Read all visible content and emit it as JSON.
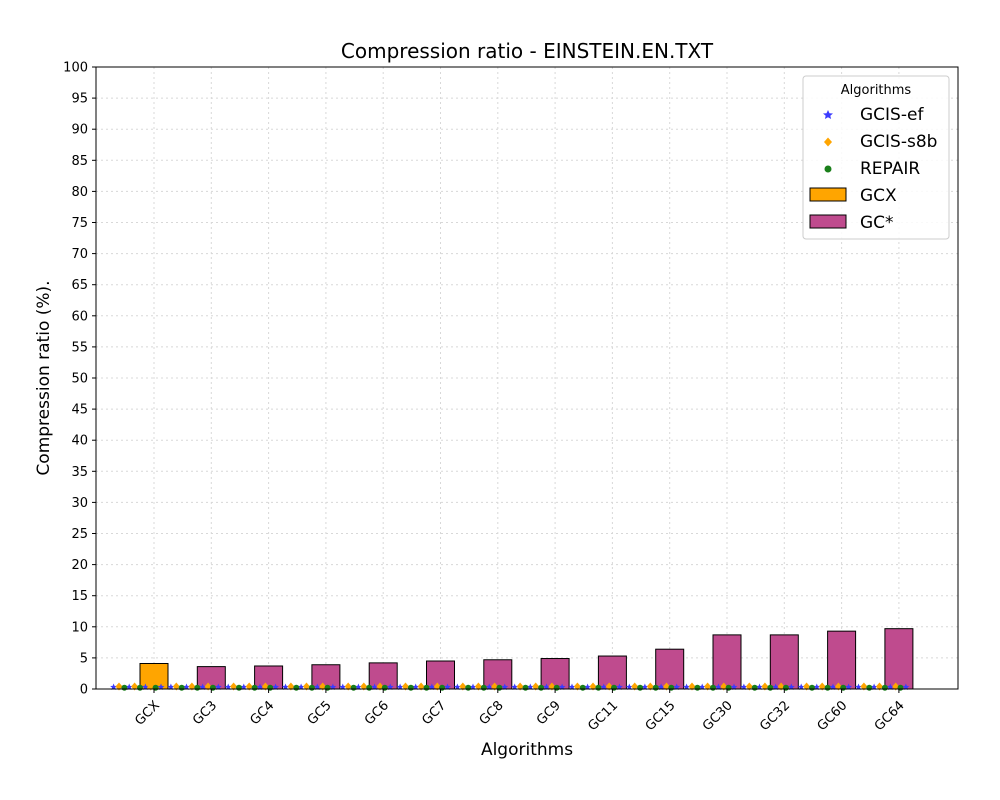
{
  "chart_data": {
    "type": "bar",
    "title": "Compression ratio -  EINSTEIN.EN.TXT",
    "xlabel": "Algorithms",
    "ylabel": "Compression ratio (%).",
    "ylim": [
      0,
      100
    ],
    "yticks": [
      0,
      5,
      10,
      15,
      20,
      25,
      30,
      35,
      40,
      45,
      50,
      55,
      60,
      65,
      70,
      75,
      80,
      85,
      90,
      95,
      100
    ],
    "grid": true,
    "legend": {
      "title": "Algorithms",
      "placement": "top-right",
      "entries": [
        "GCIS-ef",
        "GCIS-s8b",
        "REPAIR",
        "GCX",
        "GC*"
      ]
    },
    "categories": [
      "GCX",
      "GC3",
      "GC4",
      "GC5",
      "GC6",
      "GC7",
      "GC8",
      "GC9",
      "GC11",
      "GC15",
      "GC30",
      "GC32",
      "GC60",
      "GC64"
    ],
    "series": [
      {
        "name": "GCX",
        "kind": "bar",
        "color": "#ffa500",
        "values": [
          4.1,
          null,
          null,
          null,
          null,
          null,
          null,
          null,
          null,
          null,
          null,
          null,
          null,
          null
        ]
      },
      {
        "name": "GC*",
        "kind": "bar",
        "color": "#bf4b8e",
        "values": [
          null,
          3.6,
          3.7,
          3.9,
          4.2,
          4.5,
          4.7,
          4.9,
          5.3,
          6.4,
          8.7,
          8.7,
          9.3,
          9.7
        ]
      },
      {
        "name": "GCIS-ef",
        "kind": "scatter",
        "marker": "star",
        "color": "#3b3bff",
        "values": [
          0.3,
          0.3,
          0.3,
          0.3,
          0.3,
          0.3,
          0.3,
          0.3,
          0.3,
          0.3,
          0.3,
          0.3,
          0.3,
          0.3
        ]
      },
      {
        "name": "GCIS-s8b",
        "kind": "scatter",
        "marker": "diamond",
        "color": "#ffa500",
        "values": [
          0.4,
          0.4,
          0.4,
          0.4,
          0.4,
          0.4,
          0.4,
          0.4,
          0.4,
          0.4,
          0.4,
          0.4,
          0.4,
          0.4
        ]
      },
      {
        "name": "REPAIR",
        "kind": "scatter",
        "marker": "circle",
        "color": "#1a7f1a",
        "values": [
          0.2,
          0.2,
          0.2,
          0.2,
          0.2,
          0.2,
          0.2,
          0.2,
          0.2,
          0.2,
          0.2,
          0.2,
          0.2,
          0.2
        ]
      }
    ]
  }
}
